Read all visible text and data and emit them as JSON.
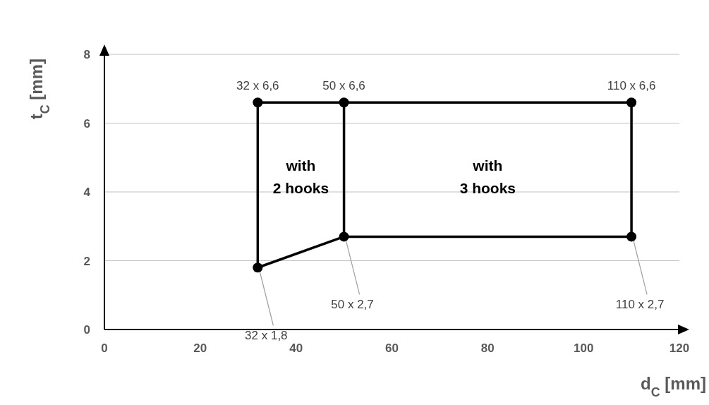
{
  "chart_data": {
    "type": "line",
    "xlabel": "d$_{C}$ [mm]",
    "ylabel": "t$_{C}$ [mm]",
    "xlim": [
      0,
      120
    ],
    "xticks": [
      0,
      20,
      40,
      60,
      80,
      100,
      120
    ],
    "ylim": [
      0,
      8
    ],
    "yticks": [
      0,
      2,
      4,
      6,
      8
    ],
    "grid": "y",
    "marker": "circle",
    "line_style": "solid",
    "series": [
      {
        "color": "#000000",
        "x": [
          32,
          50,
          110
        ],
        "values": [
          6.6,
          6.6,
          6.6
        ]
      },
      {
        "color": "#000000",
        "x": [
          32,
          50,
          110
        ],
        "values": [
          1.8,
          2.7,
          2.7
        ]
      },
      {
        "color": "#000000",
        "marker": "none",
        "x": [
          32,
          32
        ],
        "values": [
          1.8,
          6.6
        ]
      },
      {
        "color": "#000000",
        "marker": "none",
        "x": [
          50,
          50
        ],
        "values": [
          2.7,
          6.6
        ]
      },
      {
        "color": "#000000",
        "marker": "none",
        "x": [
          110,
          110
        ],
        "values": [
          2.7,
          6.6
        ]
      }
    ],
    "annotations": [
      {
        "text": "32 x 6,6",
        "x": 32,
        "y": 6.6
      },
      {
        "text": "50 x 6,6",
        "x": 50,
        "y": 6.6
      },
      {
        "text": "110 x 6,6",
        "x": 110,
        "y": 6.6
      },
      {
        "text": "32 x 1,8",
        "x": 32,
        "y": 1.8
      },
      {
        "text": "50 x 2,7",
        "x": 50,
        "y": 2.7
      },
      {
        "text": "110 x 2,7",
        "x": 110,
        "y": 2.7
      },
      "with\n2 hooks",
      "with\n3 hooks"
    ]
  }
}
